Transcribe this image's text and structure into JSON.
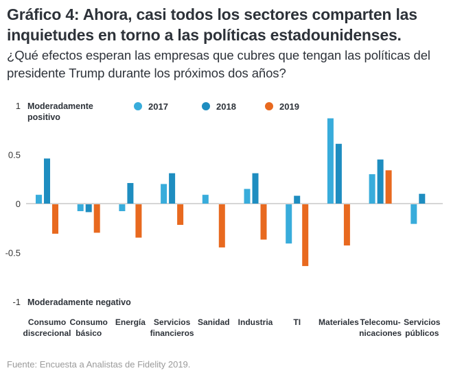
{
  "header": {
    "title": "Gráfico 4: Ahora, casi todos los sectores comparten las inquietudes en torno a las políticas estadounidenses.",
    "subtitle": "¿Qué efectos esperan las empresas que cubres que tengan las políticas del presidente Trump durante los próximos dos años?"
  },
  "footer": {
    "source": "Fuente: Encuesta a Analistas de Fidelity 2019."
  },
  "chart_data": {
    "type": "bar",
    "title": "",
    "xlabel": "",
    "ylabel": "",
    "ylim": [
      -1,
      1
    ],
    "yticks": [
      {
        "value": 1,
        "label": "1"
      },
      {
        "value": 0.5,
        "label": "0.5"
      },
      {
        "value": 0,
        "label": "0"
      },
      {
        "value": -0.5,
        "label": "-0.5"
      },
      {
        "value": -1,
        "label": "-1"
      }
    ],
    "annotations": {
      "top": [
        "Moderadamente",
        "positivo"
      ],
      "bottom": "Moderadamente negativo"
    },
    "grid": false,
    "legend_position": "top",
    "categories": [
      [
        "Consumo",
        "discrecional"
      ],
      [
        "Consumo",
        "básico"
      ],
      [
        "Energía"
      ],
      [
        "Servicios",
        "financieros"
      ],
      [
        "Sanidad"
      ],
      [
        "Industria"
      ],
      [
        "TI"
      ],
      [
        "Materiales"
      ],
      [
        "Telecomu-",
        "nicaciones"
      ],
      [
        "Servicios",
        "públicos"
      ]
    ],
    "series": [
      {
        "name": "2017",
        "color": "#38acdb",
        "values": [
          0.09,
          -0.07,
          -0.07,
          0.2,
          0.09,
          0.15,
          -0.4,
          0.87,
          0.3,
          -0.2
        ]
      },
      {
        "name": "2018",
        "color": "#1e8dc0",
        "values": [
          0.46,
          -0.08,
          0.21,
          0.31,
          0.0,
          0.31,
          0.08,
          0.61,
          0.45,
          0.1
        ]
      },
      {
        "name": "2019",
        "color": "#e8691f",
        "values": [
          -0.3,
          -0.29,
          -0.34,
          -0.21,
          -0.44,
          -0.36,
          -0.63,
          -0.42,
          0.34,
          0.0
        ]
      }
    ]
  }
}
